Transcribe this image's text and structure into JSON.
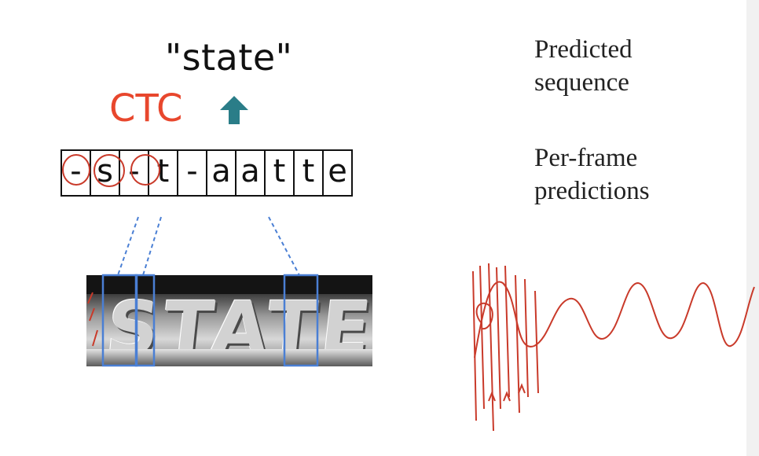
{
  "predicted_text": "\"state\"",
  "ctc_label": "CTC",
  "arrow_icon": "arrow-up-icon",
  "frames": [
    "-",
    "s",
    "-",
    "t",
    "-",
    "a",
    "a",
    "t",
    "t",
    "e"
  ],
  "labels": {
    "predicted_line1": "Predicted",
    "predicted_line2": "sequence",
    "perframe_line1": "Per-frame",
    "perframe_line2": "predictions"
  },
  "image_word": "STATE",
  "colors": {
    "ctc": "#e8472d",
    "arrow": "#2a7d88",
    "boxes": "#4a7fd4",
    "ink": "#c93a2a"
  }
}
